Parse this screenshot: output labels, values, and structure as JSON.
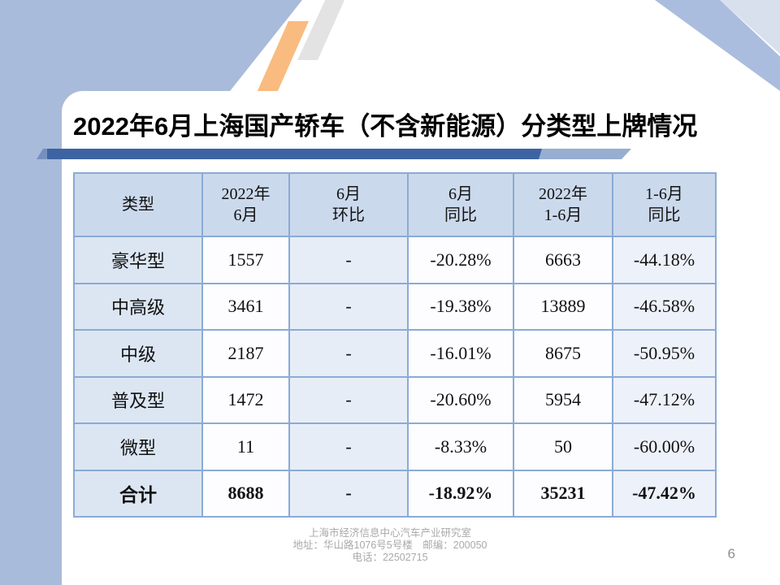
{
  "slide": {
    "title": "2022年6月上海国产轿车（不含新能源）分类型上牌情况",
    "page_number": "6",
    "footer": {
      "line1": "上海市经济信息中心汽车产业研究室",
      "line2": "地址：华山路1076号5号楼　邮编：200050",
      "line3": "电话：22502715"
    }
  },
  "table": {
    "columns": [
      {
        "lines": [
          "类型"
        ]
      },
      {
        "lines": [
          "2022年",
          "6月"
        ]
      },
      {
        "lines": [
          "6月",
          "环比"
        ]
      },
      {
        "lines": [
          "6月",
          "同比"
        ]
      },
      {
        "lines": [
          "2022年",
          "1-6月"
        ]
      },
      {
        "lines": [
          "1-6月",
          "同比"
        ]
      }
    ],
    "rows": [
      [
        "豪华型",
        "1557",
        "-",
        "-20.28%",
        "6663",
        "-44.18%"
      ],
      [
        "中高级",
        "3461",
        "-",
        "-19.38%",
        "13889",
        "-46.58%"
      ],
      [
        "中级",
        "2187",
        "-",
        "-16.01%",
        "8675",
        "-50.95%"
      ],
      [
        "普及型",
        "1472",
        "-",
        "-20.60%",
        "5954",
        "-47.12%"
      ],
      [
        "微型",
        "11",
        "-",
        "-8.33%",
        "50",
        "-60.00%"
      ]
    ],
    "total_row": [
      "合计",
      "8688",
      "-",
      "-18.92%",
      "35231",
      "-47.42%"
    ]
  },
  "colors": {
    "sidebar_blue": "#a9bbdb",
    "stripe_orange": "#f9bb80",
    "stripe_gray": "#e3e3e3",
    "corner_band_blue": "#aabdde",
    "corner_light": "#d9e0ed",
    "bottom_band_light": "#ccd6e8",
    "bottom_corner_blue": "#a2b6d9",
    "bar_dark": "#3e63a2",
    "bar_light": "#97aed1",
    "bar_cap": "#7590bf",
    "header_fill": "#cbd9ec",
    "col_fills": [
      "#dce6f3",
      "#fdfdff",
      "#e7edf7",
      "#fdfdff",
      "#fdfdff",
      "#edf1f9"
    ],
    "table_border": "#8aabd5",
    "footer_text": "#a9a9a9",
    "page_number_text": "#8f8f8f",
    "title_text": "#000000"
  }
}
